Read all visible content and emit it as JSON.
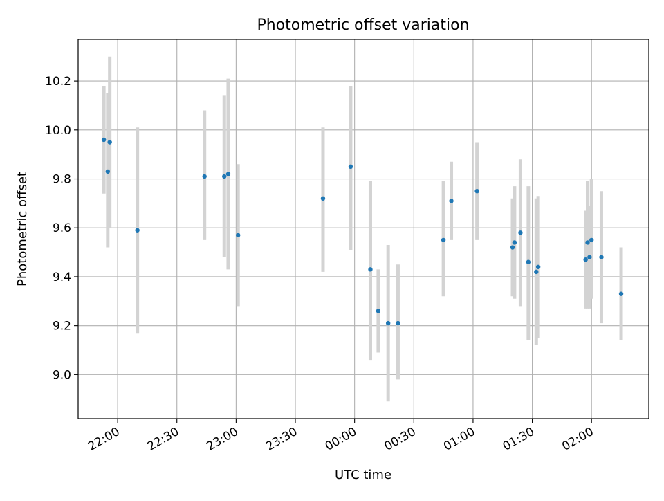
{
  "chart_data": {
    "type": "scatter",
    "title": "Photometric offset variation",
    "xlabel": "UTC time",
    "ylabel": "Photometric offset",
    "x_unit": "UTC time",
    "xlim": [
      "21:40",
      "02:29"
    ],
    "ylim": [
      8.82,
      10.37
    ],
    "grid": true,
    "x_ticks": [
      "22:00",
      "22:30",
      "23:00",
      "23:30",
      "00:00",
      "00:30",
      "01:00",
      "01:30",
      "02:00"
    ],
    "y_ticks": [
      "9.0",
      "9.2",
      "9.4",
      "9.6",
      "9.8",
      "10.0",
      "10.2"
    ],
    "colors": {
      "point": "#1f77b4",
      "errorbar": "#d3d3d3",
      "grid": "#b0b0b0"
    },
    "points": [
      {
        "time": "21:53",
        "y": 9.96,
        "err_low": 9.74,
        "err_high": 10.18
      },
      {
        "time": "21:55",
        "y": 9.83,
        "err_low": 9.52,
        "err_high": 10.15
      },
      {
        "time": "21:56",
        "y": 9.95,
        "err_low": 9.6,
        "err_high": 10.3
      },
      {
        "time": "22:10",
        "y": 9.59,
        "err_low": 9.17,
        "err_high": 10.01
      },
      {
        "time": "22:44",
        "y": 9.81,
        "err_low": 9.55,
        "err_high": 10.08
      },
      {
        "time": "22:54",
        "y": 9.81,
        "err_low": 9.48,
        "err_high": 10.14
      },
      {
        "time": "22:56",
        "y": 9.82,
        "err_low": 9.43,
        "err_high": 10.21
      },
      {
        "time": "23:01",
        "y": 9.57,
        "err_low": 9.28,
        "err_high": 9.86
      },
      {
        "time": "23:44",
        "y": 9.72,
        "err_low": 9.42,
        "err_high": 10.01
      },
      {
        "time": "23:58",
        "y": 9.85,
        "err_low": 9.51,
        "err_high": 10.18
      },
      {
        "time": "00:08",
        "y": 9.43,
        "err_low": 9.06,
        "err_high": 9.79
      },
      {
        "time": "00:12",
        "y": 9.26,
        "err_low": 9.09,
        "err_high": 9.43
      },
      {
        "time": "00:17",
        "y": 9.21,
        "err_low": 8.89,
        "err_high": 9.53
      },
      {
        "time": "00:22",
        "y": 9.21,
        "err_low": 8.98,
        "err_high": 9.45
      },
      {
        "time": "00:45",
        "y": 9.55,
        "err_low": 9.32,
        "err_high": 9.79
      },
      {
        "time": "00:49",
        "y": 9.71,
        "err_low": 9.55,
        "err_high": 9.87
      },
      {
        "time": "01:02",
        "y": 9.75,
        "err_low": 9.55,
        "err_high": 9.95
      },
      {
        "time": "01:20",
        "y": 9.52,
        "err_low": 9.32,
        "err_high": 9.72
      },
      {
        "time": "01:21",
        "y": 9.54,
        "err_low": 9.31,
        "err_high": 9.77
      },
      {
        "time": "01:24",
        "y": 9.58,
        "err_low": 9.28,
        "err_high": 9.88
      },
      {
        "time": "01:28",
        "y": 9.46,
        "err_low": 9.14,
        "err_high": 9.77
      },
      {
        "time": "01:32",
        "y": 9.42,
        "err_low": 9.12,
        "err_high": 9.72
      },
      {
        "time": "01:33",
        "y": 9.44,
        "err_low": 9.15,
        "err_high": 9.73
      },
      {
        "time": "01:57",
        "y": 9.47,
        "err_low": 9.27,
        "err_high": 9.67
      },
      {
        "time": "01:58",
        "y": 9.54,
        "err_low": 9.27,
        "err_high": 9.79
      },
      {
        "time": "01:59",
        "y": 9.48,
        "err_low": 9.27,
        "err_high": 9.69
      },
      {
        "time": "02:00",
        "y": 9.55,
        "err_low": 9.31,
        "err_high": 9.8
      },
      {
        "time": "02:05",
        "y": 9.48,
        "err_low": 9.21,
        "err_high": 9.75
      },
      {
        "time": "02:15",
        "y": 9.33,
        "err_low": 9.14,
        "err_high": 9.52
      }
    ]
  }
}
